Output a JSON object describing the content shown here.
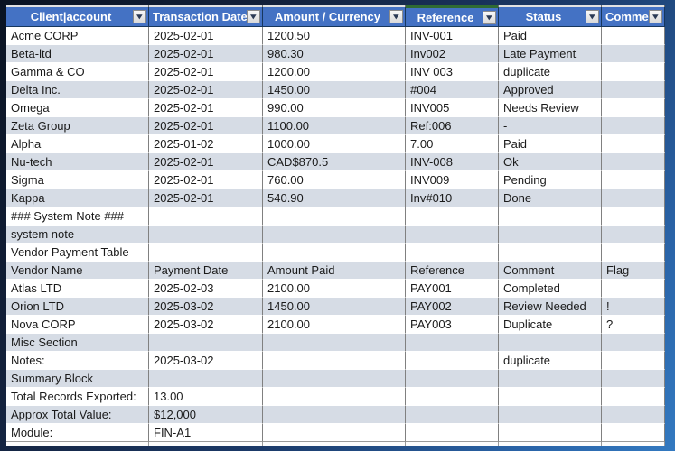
{
  "colors": {
    "header_bg": "#4472C4",
    "header_text": "#FFFFFF",
    "row_band": "#D6DCE5",
    "grid_line_vertical": "#808080",
    "frame_dark_navy": "#0A1322",
    "frame_light_blue": "#3379C0",
    "reference_accent_green": "#2F6B33"
  },
  "icons": {
    "filter_arrow": "▾"
  },
  "table": {
    "columns": [
      {
        "label": "Client|account",
        "filter": true
      },
      {
        "label": "Transaction Date",
        "filter": true
      },
      {
        "label": "Amount / Currency",
        "filter": true
      },
      {
        "label": "Reference",
        "filter": true
      },
      {
        "label": "Status",
        "filter": true
      },
      {
        "label": "Comme",
        "filter": true
      }
    ],
    "rows": [
      [
        "Acme CORP",
        "2025-02-01",
        "1200.50",
        "INV-001",
        "Paid",
        ""
      ],
      [
        "Beta-ltd",
        "2025-02-01",
        "980.30",
        "Inv002",
        "Late Payment",
        ""
      ],
      [
        "Gamma & CO",
        "2025-02-01",
        "1200.00",
        "INV 003",
        "duplicate",
        ""
      ],
      [
        "Delta Inc.",
        "2025-02-01",
        "1450.00",
        "#004",
        "Approved",
        ""
      ],
      [
        "Omega",
        "2025-02-01",
        "990.00",
        "INV005",
        "Needs Review",
        ""
      ],
      [
        "Zeta Group",
        "2025-02-01",
        "1100.00",
        "Ref:006",
        "-",
        ""
      ],
      [
        "Alpha",
        "2025-01-02",
        "1000.00",
        "7.00",
        "Paid",
        ""
      ],
      [
        "Nu-tech",
        "2025-02-01",
        "CAD$870.5",
        "INV-008",
        "Ok",
        ""
      ],
      [
        "Sigma",
        "2025-02-01",
        "760.00",
        "INV009",
        "Pending",
        ""
      ],
      [
        "Kappa",
        "2025-02-01",
        "540.90",
        "Inv#010",
        "Done",
        ""
      ],
      [
        "### System Note ###",
        "",
        "",
        "",
        "",
        ""
      ],
      [
        "system note",
        "",
        "",
        "",
        "",
        ""
      ],
      [
        "Vendor Payment Table",
        "",
        "",
        "",
        "",
        ""
      ],
      [
        "Vendor Name",
        "Payment Date",
        "Amount Paid",
        "Reference",
        "Comment",
        "Flag"
      ],
      [
        "Atlas LTD",
        "2025-02-03",
        "2100.00",
        "PAY001",
        "Completed",
        ""
      ],
      [
        "Orion LTD",
        "2025-03-02",
        "1450.00",
        "PAY002",
        "Review Needed",
        "!"
      ],
      [
        "Nova CORP",
        "2025-03-02",
        "2100.00",
        "PAY003",
        "Duplicate",
        "?"
      ],
      [
        "Misc Section",
        "",
        "",
        "",
        "",
        ""
      ],
      [
        "Notes:",
        "2025-03-02",
        "",
        "",
        "duplicate",
        ""
      ],
      [
        "Summary Block",
        "",
        "",
        "",
        "",
        ""
      ],
      [
        "Total Records Exported:",
        "13.00",
        "",
        "",
        "",
        ""
      ],
      [
        "Approx Total Value:",
        "$12,000",
        "",
        "",
        "",
        ""
      ],
      [
        "Module:",
        "FIN-A1",
        "",
        "",
        "",
        ""
      ]
    ]
  }
}
